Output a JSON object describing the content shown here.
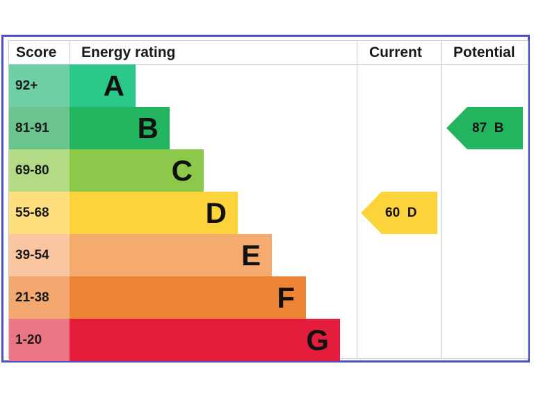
{
  "chart_data": {
    "type": "table",
    "headers": {
      "score": "Score",
      "rating": "Energy rating",
      "current": "Current",
      "potential": "Potential"
    },
    "bands": [
      {
        "range": "92+",
        "letter": "A",
        "color": "#2ac98a",
        "score_color": "#6fcfa6"
      },
      {
        "range": "81-91",
        "letter": "B",
        "color": "#23b45f",
        "score_color": "#69c48e"
      },
      {
        "range": "69-80",
        "letter": "C",
        "color": "#8cc94a",
        "score_color": "#b3da85"
      },
      {
        "range": "55-68",
        "letter": "D",
        "color": "#fcd33a",
        "score_color": "#fde07d"
      },
      {
        "range": "39-54",
        "letter": "E",
        "color": "#f6ab6e",
        "score_color": "#f9c69f"
      },
      {
        "range": "21-38",
        "letter": "F",
        "color": "#ee8536",
        "score_color": "#f3a870"
      },
      {
        "range": "1-20",
        "letter": "G",
        "color": "#e31d3b",
        "score_color": "#ec7585"
      }
    ],
    "current": {
      "value": 60,
      "letter": "D",
      "label": "60  D",
      "color": "#fcd33a"
    },
    "potential": {
      "value": 87,
      "letter": "B",
      "label": "87  B",
      "color": "#23b45f"
    }
  }
}
